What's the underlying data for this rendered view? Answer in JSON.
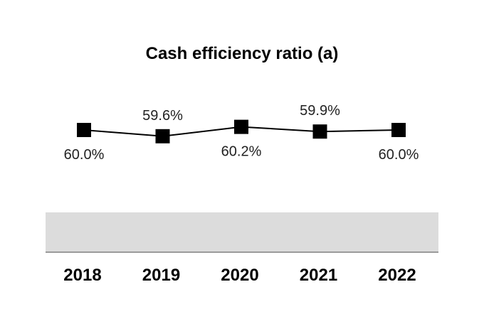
{
  "chart_data": {
    "type": "line",
    "title": "Cash efficiency ratio (a)",
    "categories": [
      "2018",
      "2019",
      "2020",
      "2021",
      "2022"
    ],
    "series": [
      {
        "name": "Cash efficiency ratio",
        "values": [
          60.0,
          59.6,
          60.2,
          59.9,
          60.0
        ],
        "labels": [
          "60.0%",
          "59.6%",
          "60.2%",
          "59.9%",
          "60.0%"
        ]
      }
    ],
    "xlabel": "",
    "ylabel": "",
    "marker": "square",
    "colors": {
      "line": "#000000",
      "marker": "#000000",
      "band": "#dcdcdc",
      "axis": "#9a9a9a"
    }
  }
}
